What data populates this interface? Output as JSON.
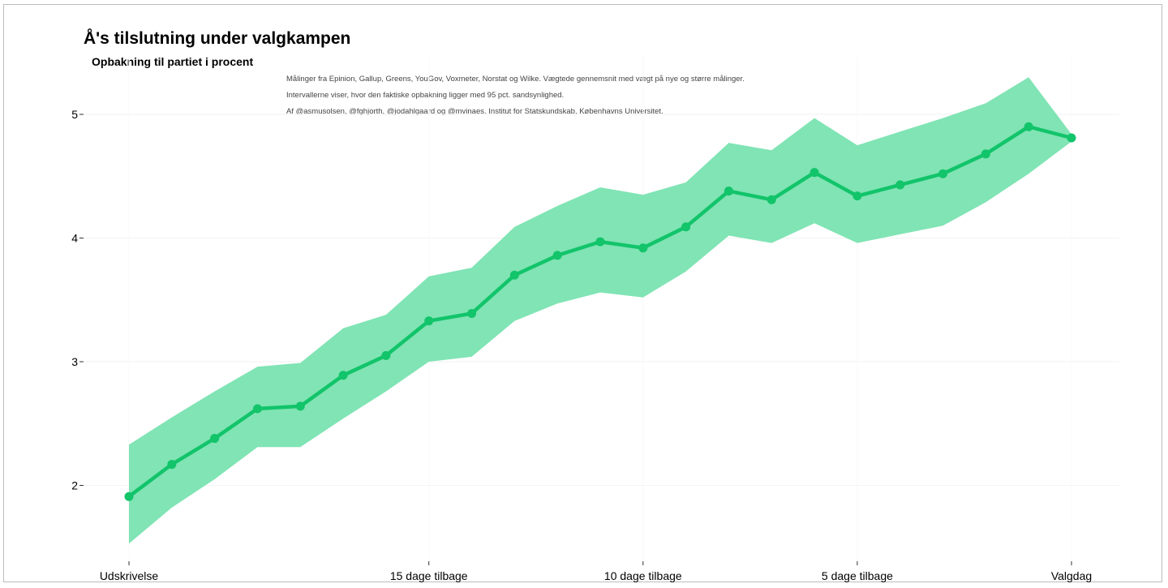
{
  "chart_data": {
    "type": "line",
    "title": "Å's tilslutning under valgkampen",
    "subtitle": "Opbakning til partiet i procent",
    "caption": [
      "Målinger fra Epinion, Gallup, Greens, YouGov, Voxmeter, Norstat og Wilke. Vægtede gennemsnit med vægt på nye og større målinger.",
      "Intervallerne viser, hvor den faktiske opbakning ligger med 95 pct. sandsynlighed.",
      "Af @asmusolsen, @fghjorth, @jodahlgaard og @mvinaes. Institut for Statskundskab, Københavns Universitet."
    ],
    "xlabel": "",
    "ylabel": "",
    "xlim": [
      -22,
      0
    ],
    "ylim": [
      1.4,
      5.4
    ],
    "x_ticks": [
      {
        "value": -22,
        "label": "Udskrivelse"
      },
      {
        "value": -15,
        "label": "15 dage tilbage"
      },
      {
        "value": -10,
        "label": "10 dage tilbage"
      },
      {
        "value": -5,
        "label": "5 dage tilbage"
      },
      {
        "value": 0,
        "label": "Valgdag"
      }
    ],
    "y_ticks": [
      2,
      3,
      4,
      5
    ],
    "grid": true,
    "colors": {
      "line": "#12c46a",
      "band": "#80e4b4",
      "grid": "#f4f4f4",
      "axis_text": "#000000"
    },
    "series": [
      {
        "x": [
          -22,
          -21,
          -20,
          -19,
          -18,
          -17,
          -16,
          -15,
          -14,
          -13,
          -12,
          -11,
          -10,
          -9,
          -8,
          -7,
          -6,
          -5,
          -4,
          -3,
          -2,
          -1,
          0
        ],
        "values": [
          1.91,
          2.17,
          2.38,
          2.62,
          2.64,
          2.89,
          3.05,
          3.33,
          3.39,
          3.7,
          3.86,
          3.97,
          3.92,
          4.09,
          4.38,
          4.31,
          4.53,
          4.34,
          4.43,
          4.52,
          4.68,
          4.9,
          4.81
        ],
        "lower": [
          1.53,
          1.82,
          2.05,
          2.31,
          2.31,
          2.54,
          2.76,
          3.0,
          3.04,
          3.33,
          3.47,
          3.56,
          3.52,
          3.73,
          4.02,
          3.96,
          4.12,
          3.96,
          4.03,
          4.1,
          4.29,
          4.52,
          4.78
        ],
        "upper": [
          2.33,
          2.55,
          2.76,
          2.96,
          2.99,
          3.27,
          3.38,
          3.69,
          3.76,
          4.09,
          4.26,
          4.41,
          4.35,
          4.45,
          4.77,
          4.71,
          4.97,
          4.75,
          4.86,
          4.97,
          5.09,
          5.3,
          4.84
        ]
      }
    ]
  }
}
